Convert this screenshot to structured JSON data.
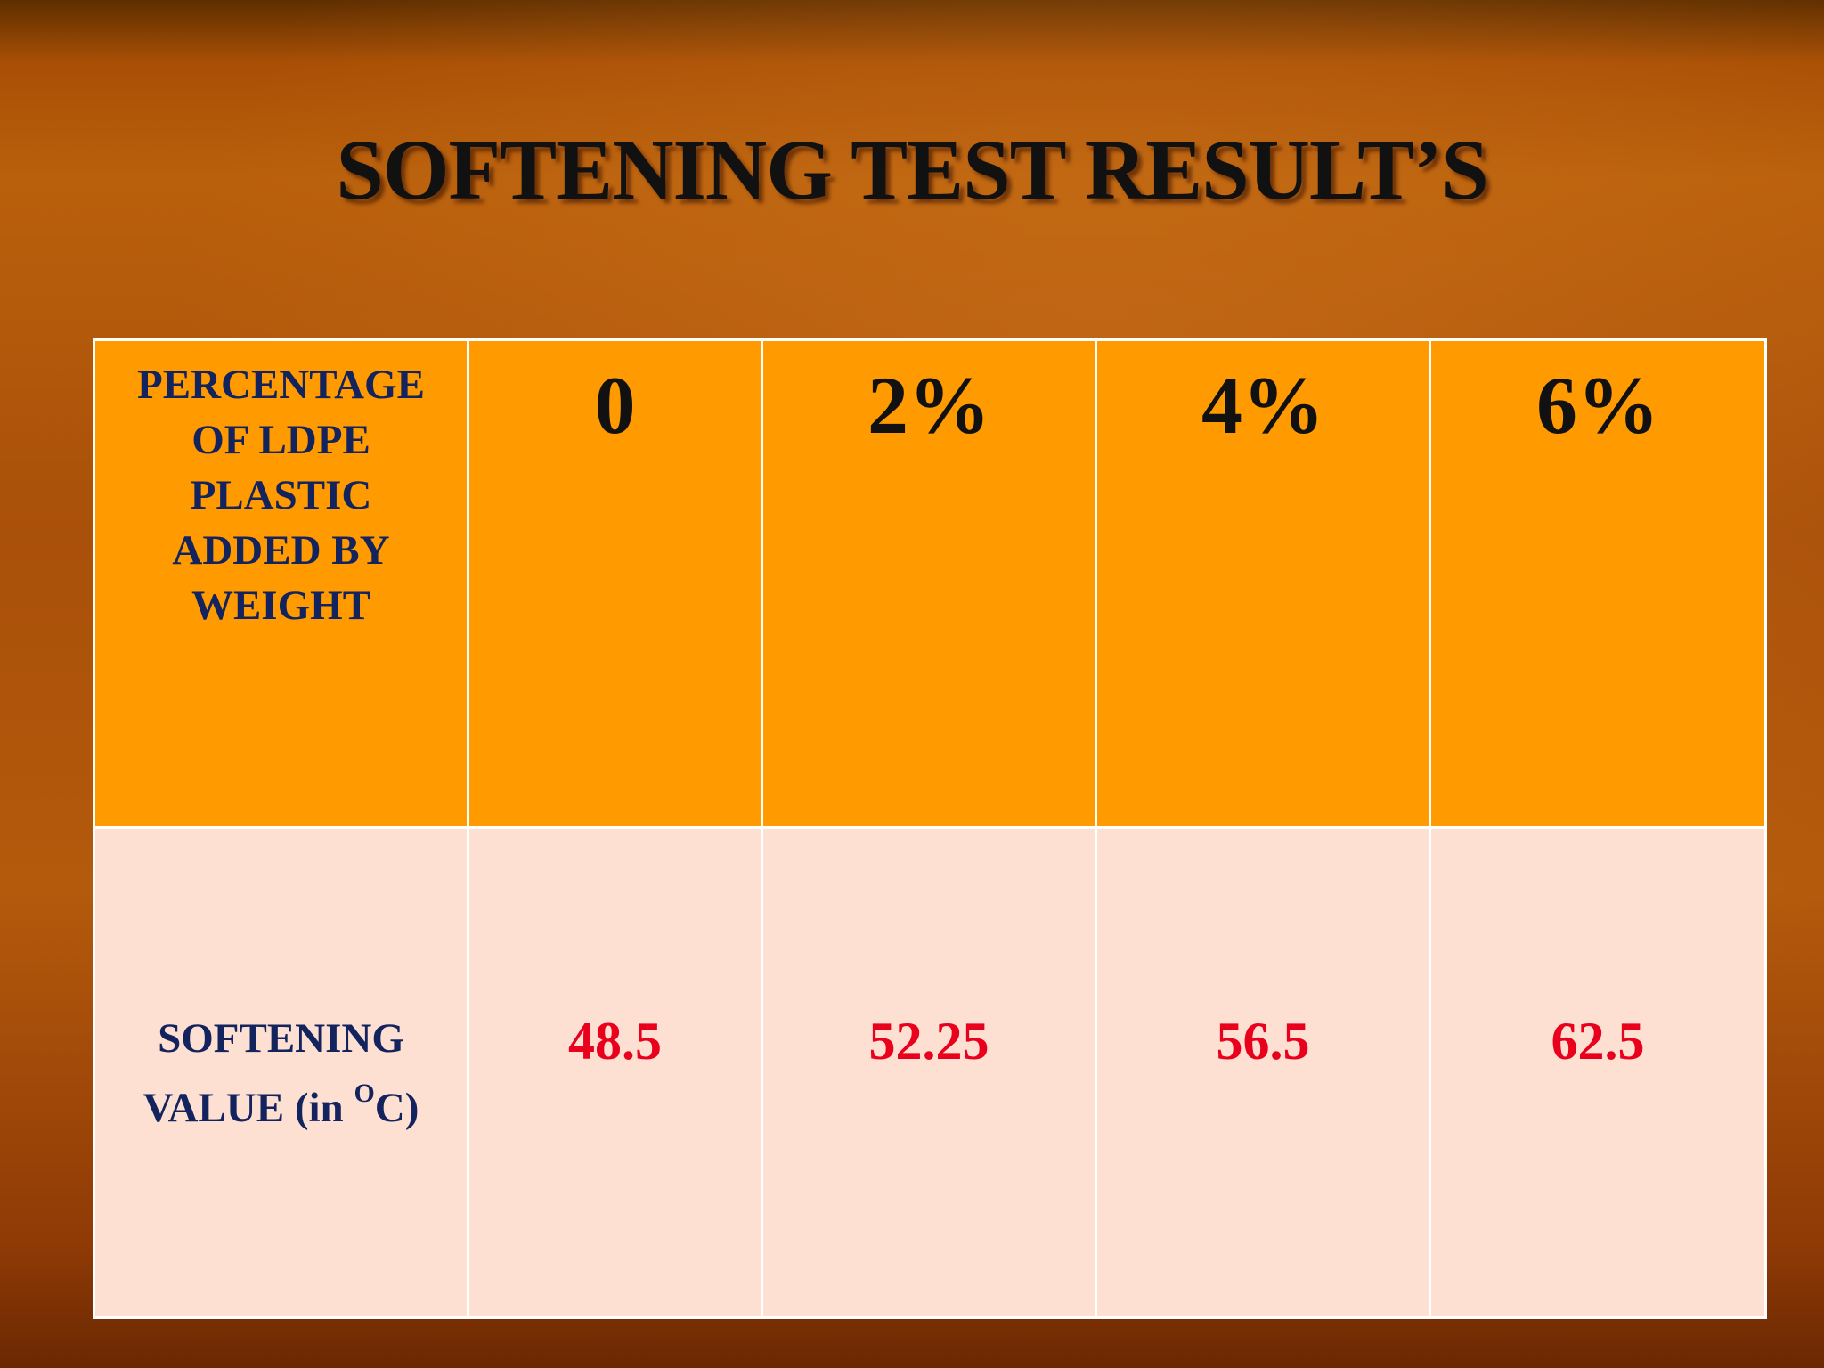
{
  "title": "SOFTENING TEST RESULT’S",
  "table": {
    "header": {
      "label": "PERCENTAGE OF LDPE PLASTIC ADDED BY WEIGHT",
      "cells": [
        "0",
        "2%",
        "4%",
        "6%"
      ]
    },
    "row": {
      "label": {
        "text": "SOFTENING VALUE (in ",
        "superscript": "O",
        "suffix": "C)"
      },
      "cells": [
        48.5,
        52.25,
        56.5,
        62.5
      ]
    }
  }
}
